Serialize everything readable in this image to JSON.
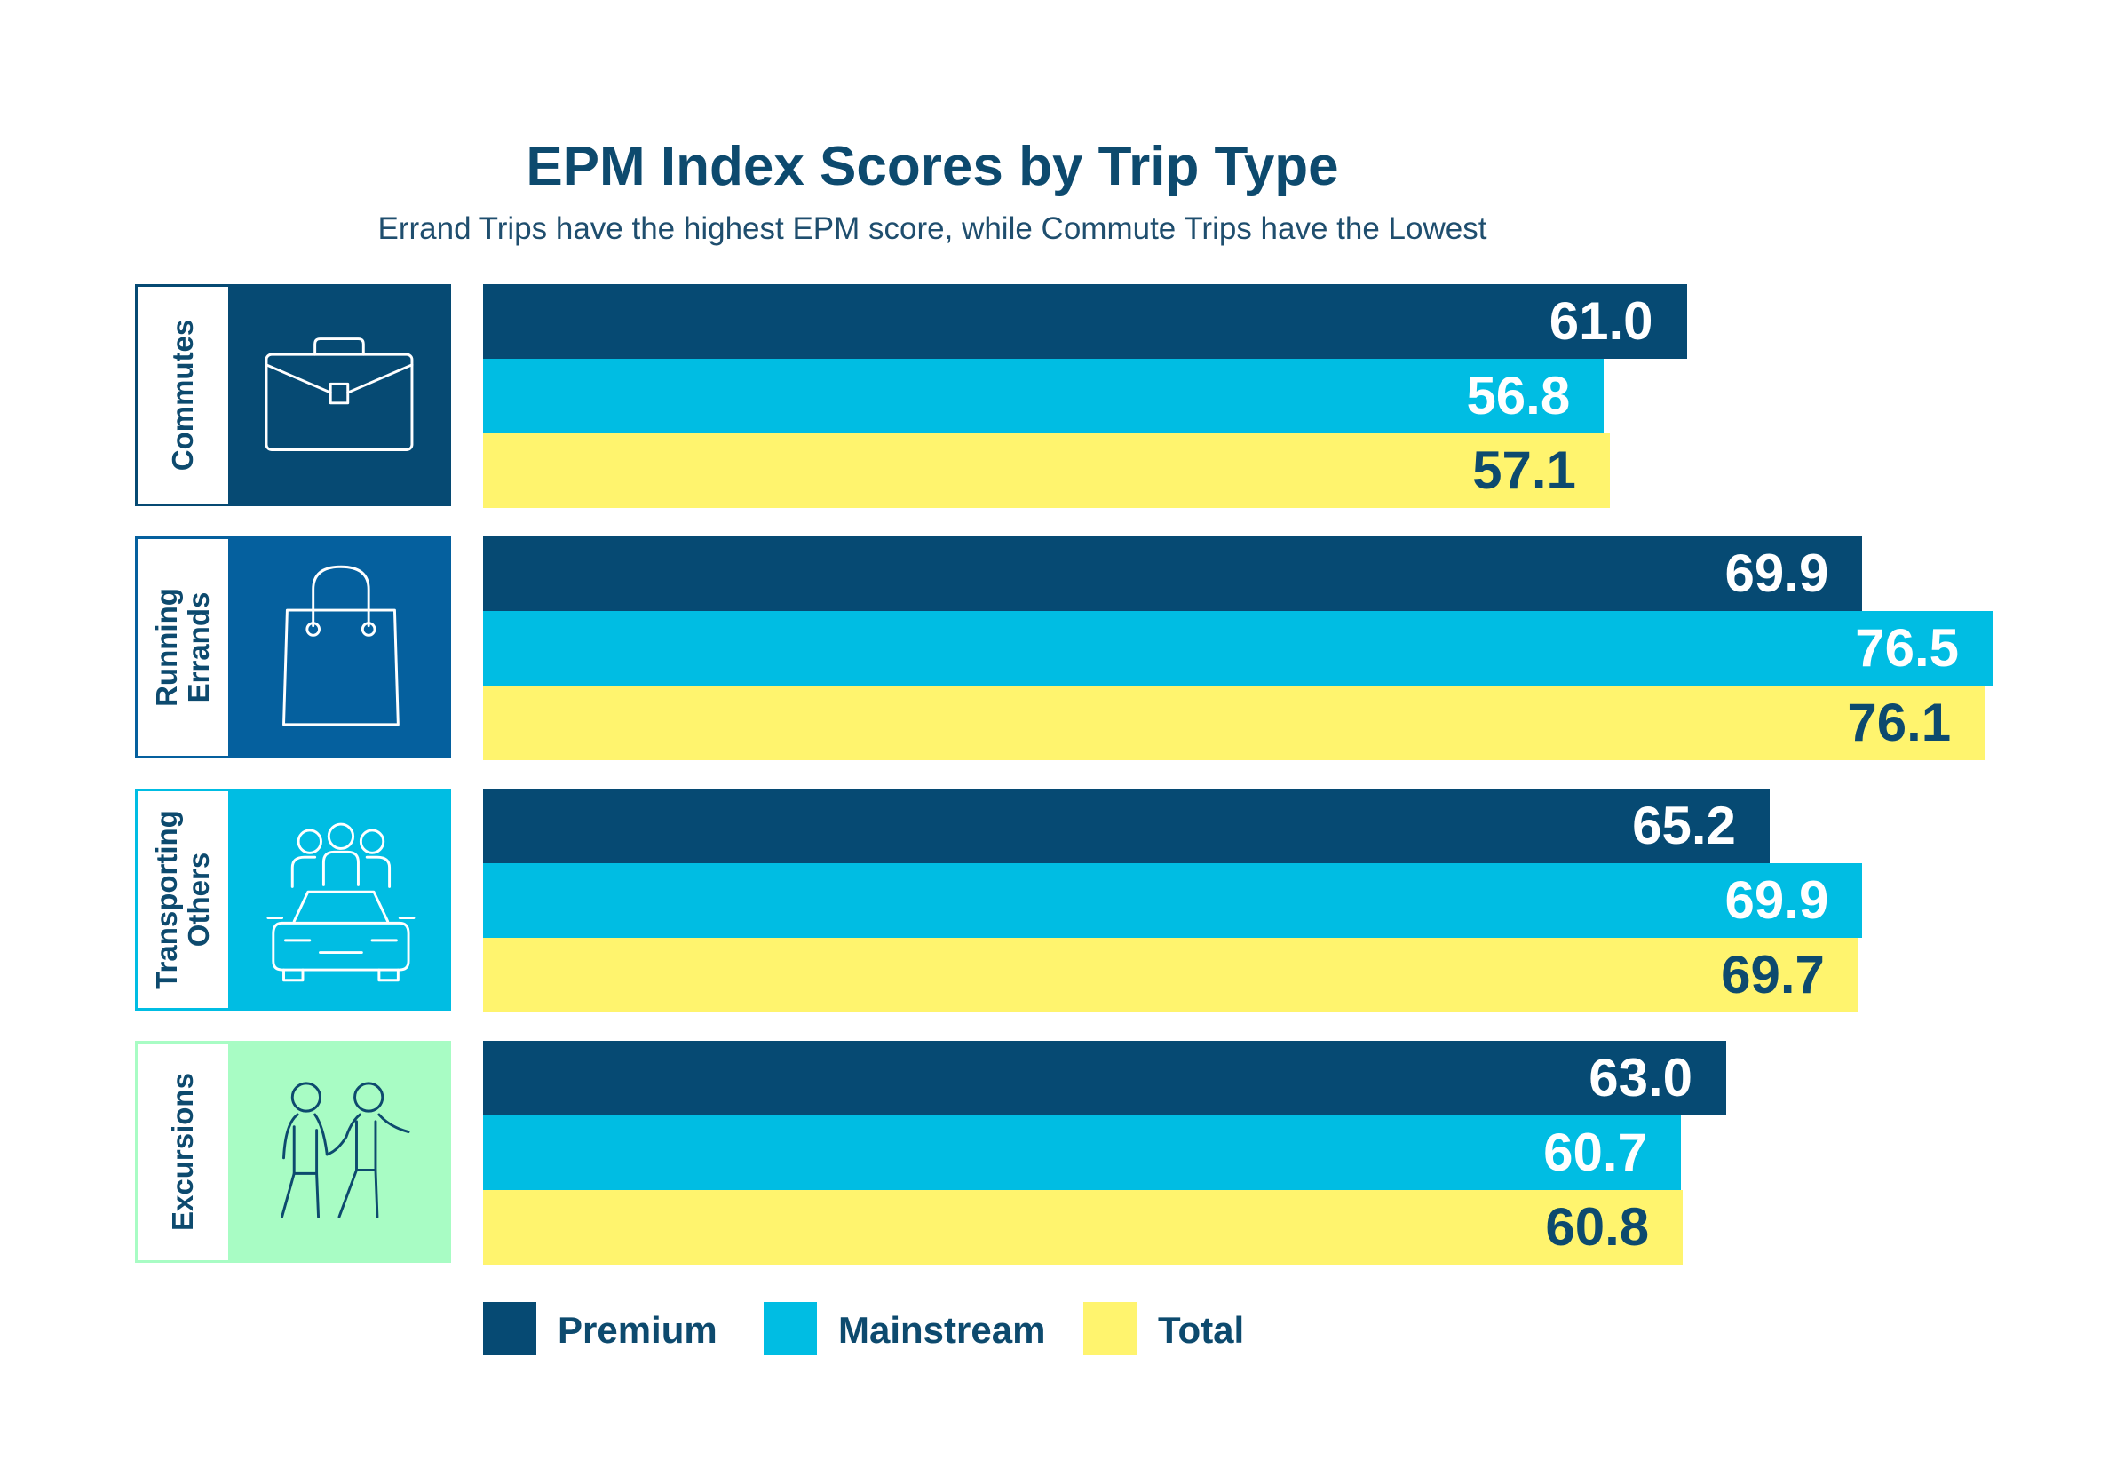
{
  "chart_data": {
    "type": "bar",
    "orientation": "horizontal",
    "title": "EPM Index Scores by Trip Type",
    "subtitle": "Errand Trips have the highest EPM score, while Commute Trips have the Lowest",
    "categories": [
      "Commutes",
      "Running\nErrands",
      "Transporting\nOthers",
      "Excursions"
    ],
    "category_icons": [
      "briefcase-icon",
      "shopping-bag-icon",
      "family-car-icon",
      "walking-people-icon"
    ],
    "category_colors": [
      "#064a73",
      "#05609e",
      "#00bde3",
      "#a8fcc4"
    ],
    "series": [
      {
        "name": "Premium",
        "color": "#064a73",
        "text_color": "#ffffff",
        "values": [
          61.0,
          69.9,
          65.2,
          63.0
        ],
        "labels": [
          "61.0",
          "69.9",
          "65.2",
          "63.0"
        ]
      },
      {
        "name": "Mainstream",
        "color": "#00bde3",
        "text_color": "#ffffff",
        "values": [
          56.8,
          76.5,
          69.9,
          60.7
        ],
        "labels": [
          "56.8",
          "76.5",
          "69.9",
          "60.7"
        ]
      },
      {
        "name": "Total",
        "color": "#fff46e",
        "text_color": "#0d4a6e",
        "values": [
          57.1,
          76.1,
          69.7,
          60.8
        ],
        "labels": [
          "57.1",
          "76.1",
          "69.7",
          "60.8"
        ]
      }
    ],
    "legend_position": "bottom-left",
    "grid": false
  }
}
